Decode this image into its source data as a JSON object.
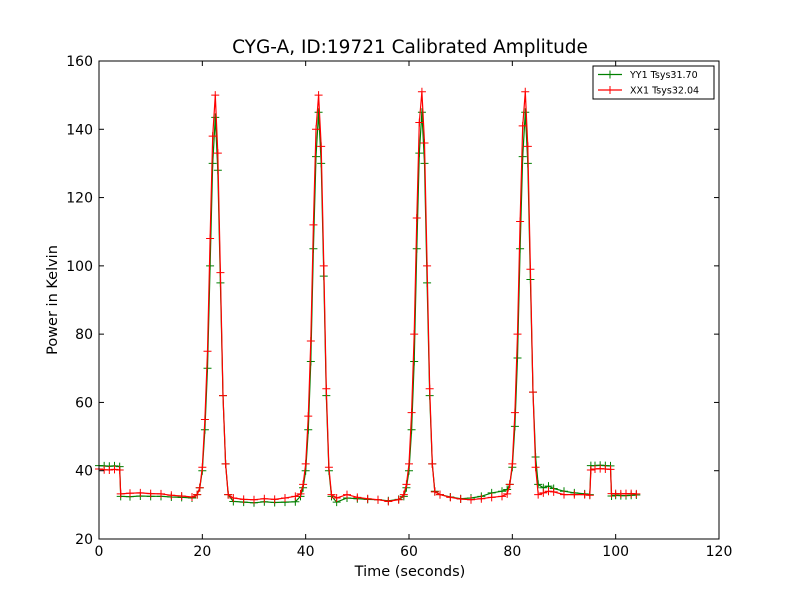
{
  "chart_data": {
    "type": "line",
    "title": "CYG-A, ID:19721 Calibrated Amplitude",
    "xlabel": "Time (seconds)",
    "ylabel": "Power in Kelvin",
    "xlim": [
      0,
      120
    ],
    "ylim": [
      20,
      160
    ],
    "xticks": [
      0,
      20,
      40,
      60,
      80,
      100,
      120
    ],
    "yticks": [
      20,
      40,
      60,
      80,
      100,
      120,
      140,
      160
    ],
    "xtick_labels": [
      "0",
      "20",
      "40",
      "60",
      "80",
      "100",
      "120"
    ],
    "ytick_labels": [
      "20",
      "40",
      "60",
      "80",
      "100",
      "120",
      "140",
      "160"
    ],
    "grid": false,
    "legend": {
      "placement": "top-right",
      "entries": [
        "YY1 Tsys31.70",
        "XX1 Tsys32.04"
      ]
    },
    "marker": "+",
    "series": [
      {
        "name": "YY1 Tsys31.70",
        "color": "#008000",
        "points": [
          [
            0.0,
            41.5
          ],
          [
            1.0,
            41.4
          ],
          [
            2.0,
            41.3
          ],
          [
            3.0,
            41.4
          ],
          [
            4.0,
            41.2
          ],
          [
            4.2,
            32.5
          ],
          [
            6.0,
            32.4
          ],
          [
            8.0,
            32.6
          ],
          [
            10.0,
            32.5
          ],
          [
            12.0,
            32.5
          ],
          [
            14.0,
            32.3
          ],
          [
            16.0,
            32.2
          ],
          [
            18.0,
            32.0
          ],
          [
            19.0,
            33.0
          ],
          [
            19.5,
            35.0
          ],
          [
            20.0,
            40.0
          ],
          [
            20.5,
            52.0
          ],
          [
            21.0,
            70.0
          ],
          [
            21.5,
            100.0
          ],
          [
            22.0,
            130.0
          ],
          [
            22.5,
            143.5
          ],
          [
            23.0,
            128.0
          ],
          [
            23.5,
            95.0
          ],
          [
            24.0,
            62.0
          ],
          [
            24.5,
            42.0
          ],
          [
            25.0,
            33.0
          ],
          [
            26.0,
            31.0
          ],
          [
            28.0,
            30.8
          ],
          [
            30.0,
            30.6
          ],
          [
            32.0,
            30.9
          ],
          [
            34.0,
            30.7
          ],
          [
            36.0,
            30.8
          ],
          [
            38.0,
            30.9
          ],
          [
            39.0,
            32.5
          ],
          [
            39.5,
            35.0
          ],
          [
            40.0,
            40.0
          ],
          [
            40.5,
            52.0
          ],
          [
            41.0,
            72.0
          ],
          [
            41.5,
            105.0
          ],
          [
            42.0,
            132.0
          ],
          [
            42.5,
            145.0
          ],
          [
            43.0,
            130.0
          ],
          [
            43.5,
            97.0
          ],
          [
            44.0,
            62.0
          ],
          [
            44.5,
            40.0
          ],
          [
            45.0,
            32.5
          ],
          [
            46.0,
            30.8
          ],
          [
            48.0,
            32.0
          ],
          [
            50.0,
            31.8
          ],
          [
            52.0,
            31.6
          ],
          [
            54.0,
            31.5
          ],
          [
            56.0,
            31.2
          ],
          [
            58.0,
            31.6
          ],
          [
            59.0,
            32.5
          ],
          [
            59.5,
            35.0
          ],
          [
            60.0,
            40.0
          ],
          [
            60.5,
            52.0
          ],
          [
            61.0,
            72.0
          ],
          [
            61.5,
            105.0
          ],
          [
            62.0,
            133.0
          ],
          [
            62.5,
            145.0
          ],
          [
            63.0,
            130.0
          ],
          [
            63.5,
            95.0
          ],
          [
            64.0,
            62.0
          ],
          [
            64.5,
            42.0
          ],
          [
            65.0,
            34.0
          ],
          [
            66.0,
            33.0
          ],
          [
            68.0,
            32.3
          ],
          [
            70.0,
            31.8
          ],
          [
            72.0,
            32.0
          ],
          [
            74.0,
            32.5
          ],
          [
            76.0,
            33.5
          ],
          [
            78.0,
            34.0
          ],
          [
            79.0,
            34.5
          ],
          [
            79.5,
            36.0
          ],
          [
            80.0,
            41.0
          ],
          [
            80.5,
            53.0
          ],
          [
            81.0,
            73.0
          ],
          [
            81.5,
            105.0
          ],
          [
            82.0,
            132.0
          ],
          [
            82.5,
            145.0
          ],
          [
            83.0,
            130.0
          ],
          [
            83.5,
            96.0
          ],
          [
            84.0,
            63.0
          ],
          [
            84.5,
            44.0
          ],
          [
            85.0,
            36.0
          ],
          [
            86.0,
            35.0
          ],
          [
            87.0,
            35.5
          ],
          [
            88.0,
            34.8
          ],
          [
            90.0,
            34.0
          ],
          [
            92.0,
            33.5
          ],
          [
            94.0,
            33.2
          ],
          [
            95.0,
            33.0
          ],
          [
            95.2,
            41.5
          ],
          [
            96.0,
            41.5
          ],
          [
            97.0,
            41.6
          ],
          [
            98.0,
            41.5
          ],
          [
            99.0,
            41.4
          ],
          [
            99.2,
            32.6
          ],
          [
            100.0,
            32.8
          ],
          [
            101.0,
            32.7
          ],
          [
            102.0,
            32.7
          ],
          [
            103.0,
            32.8
          ],
          [
            104.0,
            32.9
          ]
        ]
      },
      {
        "name": "XX1 Tsys32.04",
        "color": "#ff0000",
        "points": [
          [
            0.0,
            40.5
          ],
          [
            1.0,
            40.3
          ],
          [
            2.0,
            40.2
          ],
          [
            3.0,
            40.4
          ],
          [
            4.0,
            40.2
          ],
          [
            4.2,
            33.2
          ],
          [
            6.0,
            33.4
          ],
          [
            8.0,
            33.5
          ],
          [
            10.0,
            33.3
          ],
          [
            12.0,
            33.2
          ],
          [
            14.0,
            32.8
          ],
          [
            16.0,
            32.6
          ],
          [
            18.0,
            32.3
          ],
          [
            19.0,
            33.0
          ],
          [
            19.5,
            35.0
          ],
          [
            20.0,
            41.0
          ],
          [
            20.5,
            55.0
          ],
          [
            21.0,
            75.0
          ],
          [
            21.5,
            108.0
          ],
          [
            22.0,
            138.0
          ],
          [
            22.5,
            150.0
          ],
          [
            23.0,
            133.0
          ],
          [
            23.5,
            98.0
          ],
          [
            24.0,
            62.0
          ],
          [
            24.5,
            42.0
          ],
          [
            25.0,
            33.0
          ],
          [
            26.0,
            32.0
          ],
          [
            28.0,
            31.6
          ],
          [
            30.0,
            31.5
          ],
          [
            32.0,
            31.8
          ],
          [
            34.0,
            31.6
          ],
          [
            36.0,
            32.0
          ],
          [
            38.0,
            32.5
          ],
          [
            39.0,
            33.2
          ],
          [
            39.5,
            36.0
          ],
          [
            40.0,
            42.0
          ],
          [
            40.5,
            56.0
          ],
          [
            41.0,
            78.0
          ],
          [
            41.5,
            112.0
          ],
          [
            42.0,
            140.0
          ],
          [
            42.5,
            150.0
          ],
          [
            43.0,
            135.0
          ],
          [
            43.5,
            100.0
          ],
          [
            44.0,
            64.0
          ],
          [
            44.5,
            41.0
          ],
          [
            45.0,
            33.0
          ],
          [
            46.0,
            32.0
          ],
          [
            48.0,
            33.0
          ],
          [
            50.0,
            32.2
          ],
          [
            52.0,
            31.8
          ],
          [
            54.0,
            31.5
          ],
          [
            56.0,
            31.0
          ],
          [
            58.0,
            31.5
          ],
          [
            59.0,
            33.0
          ],
          [
            59.5,
            36.0
          ],
          [
            60.0,
            42.0
          ],
          [
            60.5,
            57.0
          ],
          [
            61.0,
            80.0
          ],
          [
            61.5,
            114.0
          ],
          [
            62.0,
            142.0
          ],
          [
            62.5,
            151.0
          ],
          [
            63.0,
            136.0
          ],
          [
            63.5,
            100.0
          ],
          [
            64.0,
            64.0
          ],
          [
            64.5,
            42.0
          ],
          [
            65.0,
            33.8
          ],
          [
            66.0,
            33.0
          ],
          [
            68.0,
            32.2
          ],
          [
            70.0,
            31.7
          ],
          [
            72.0,
            31.5
          ],
          [
            74.0,
            31.8
          ],
          [
            76.0,
            32.2
          ],
          [
            78.0,
            32.5
          ],
          [
            79.0,
            33.2
          ],
          [
            79.5,
            36.0
          ],
          [
            80.0,
            42.0
          ],
          [
            80.5,
            57.0
          ],
          [
            81.0,
            80.0
          ],
          [
            81.5,
            113.0
          ],
          [
            82.0,
            141.0
          ],
          [
            82.5,
            151.0
          ],
          [
            83.0,
            135.0
          ],
          [
            83.5,
            99.0
          ],
          [
            84.0,
            63.0
          ],
          [
            84.5,
            41.0
          ],
          [
            85.0,
            33.0
          ],
          [
            86.0,
            33.5
          ],
          [
            87.0,
            34.0
          ],
          [
            88.0,
            33.8
          ],
          [
            90.0,
            33.0
          ],
          [
            92.0,
            33.0
          ],
          [
            94.0,
            33.0
          ],
          [
            95.0,
            32.8
          ],
          [
            95.2,
            40.2
          ],
          [
            96.0,
            40.5
          ],
          [
            97.0,
            40.6
          ],
          [
            98.0,
            40.5
          ],
          [
            99.0,
            40.4
          ],
          [
            99.2,
            33.3
          ],
          [
            100.0,
            33.3
          ],
          [
            101.0,
            33.2
          ],
          [
            102.0,
            33.3
          ],
          [
            103.0,
            33.3
          ],
          [
            104.0,
            33.2
          ]
        ]
      }
    ]
  }
}
